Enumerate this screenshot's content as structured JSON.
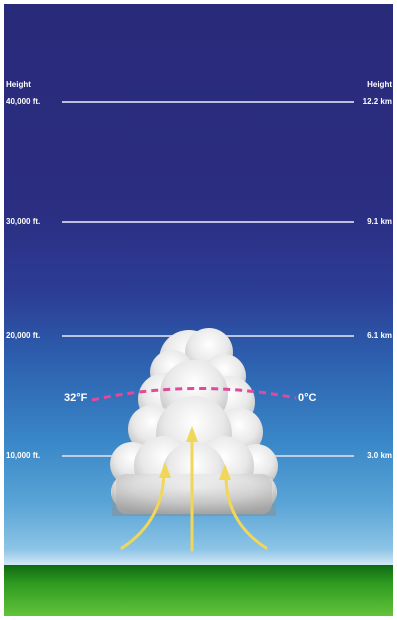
{
  "heading": {
    "left": "Height",
    "right": "Height"
  },
  "levels": [
    {
      "feet": "40,000 ft.",
      "km": "12.2 km"
    },
    {
      "feet": "30,000 ft.",
      "km": "9.1 km"
    },
    {
      "feet": "20,000 ft.",
      "km": "6.1 km"
    },
    {
      "feet": "10,000 ft.",
      "km": "3.0 km"
    }
  ],
  "freezing_level": {
    "fahrenheit": "32°F",
    "celsius": "0°C"
  },
  "colors": {
    "sky_top": "#2a2a7a",
    "sky_bottom": "#cfe6f4",
    "ground": "#3fa325",
    "freezing_line": "#e2499a",
    "updraft_arrows": "#f0d75a",
    "cloud": "#e6e6e6"
  }
}
